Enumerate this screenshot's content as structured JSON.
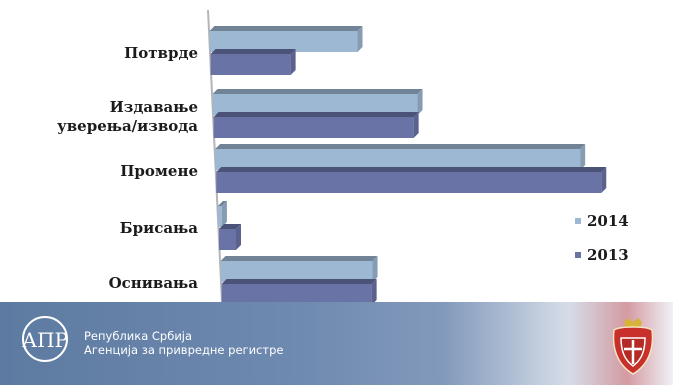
{
  "chart_data": {
    "type": "bar",
    "orientation": "horizontal",
    "categories": [
      "Потврде",
      "Издавање уверења/извода",
      "Промене",
      "Брисања",
      "Оснивања"
    ],
    "category_lines": [
      [
        "Потврде"
      ],
      [
        "Издавање",
        "уверења/извода"
      ],
      [
        "Промене"
      ],
      [
        "Брисања"
      ],
      [
        "Оснивања"
      ]
    ],
    "series": [
      {
        "name": "2014",
        "color": "#9db8d2",
        "values": [
          148,
          205,
          365,
          4,
          152
        ]
      },
      {
        "name": "2013",
        "color": "#6a73a6",
        "values": [
          80,
          200,
          385,
          17,
          150
        ]
      }
    ],
    "xlim": [
      0,
      400
    ],
    "grid": false,
    "legend_position": "right"
  },
  "footer": {
    "org_line1": "Република Србија",
    "org_line2": "Агенција за привредне регистре",
    "logo_text": "АПР",
    "logo_icon": "apr-logo-icon",
    "crest_icon": "serbia-coat-of-arms-icon"
  }
}
